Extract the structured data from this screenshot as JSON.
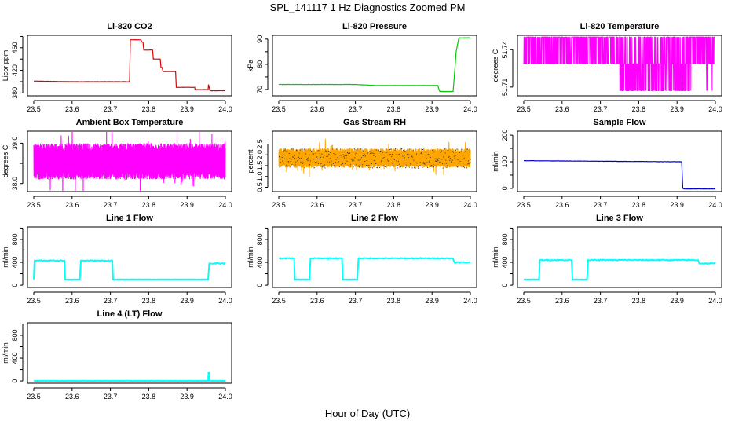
{
  "figure": {
    "title": "SPL_141117  1 Hz Diagnostics Zoomed PM",
    "xlabel": "Hour of Day (UTC)"
  },
  "colors": {
    "red": "#dd0000",
    "green": "#00cc00",
    "magenta": "#ff00ff",
    "orange": "#ffa500",
    "blue": "#0000cc",
    "cyan": "#00ffff",
    "axis": "#000000"
  },
  "chart_data": [
    {
      "id": "co2",
      "type": "line",
      "title": "Li-820 CO2",
      "ylabel": "Licor ppm",
      "color": "red",
      "xlim": [
        23.5,
        24.0
      ],
      "xticks": [
        23.5,
        23.6,
        23.7,
        23.8,
        23.9,
        24.0
      ],
      "ylim": [
        375,
        482
      ],
      "yticks": [
        380,
        400,
        420,
        440,
        460,
        480
      ],
      "ytick_labels": [
        "380",
        "",
        "420",
        "",
        "460",
        ""
      ],
      "series": [
        {
          "name": "CO2",
          "x": [
            23.5,
            23.6,
            23.7,
            23.75,
            23.752,
            23.78,
            23.782,
            23.785,
            23.787,
            23.81,
            23.812,
            23.83,
            23.832,
            23.835,
            23.837,
            23.87,
            23.872,
            23.92,
            23.921,
            23.955,
            23.956,
            23.96,
            23.962,
            24.0
          ],
          "y": [
            401,
            400,
            400,
            400,
            474,
            474,
            470,
            470,
            456,
            456,
            440,
            440,
            425,
            425,
            418,
            418,
            390,
            390,
            386,
            386,
            395,
            384,
            384,
            384
          ]
        }
      ]
    },
    {
      "id": "pressure",
      "type": "line",
      "title": "Li-820 Pressure",
      "ylabel": "kPa",
      "color": "green",
      "xlim": [
        23.5,
        24.0
      ],
      "xticks": [
        23.5,
        23.6,
        23.7,
        23.8,
        23.9,
        24.0
      ],
      "ylim": [
        67.5,
        91.5
      ],
      "yticks": [
        70,
        75,
        80,
        85,
        90
      ],
      "ytick_labels": [
        "70",
        "",
        "80",
        "",
        "90"
      ],
      "series": [
        {
          "name": "Pressure",
          "x": [
            23.5,
            23.6,
            23.7,
            23.75,
            23.8,
            23.85,
            23.9,
            23.915,
            23.92,
            23.955,
            23.96,
            23.963,
            23.97,
            24.0
          ],
          "y": [
            72,
            72,
            72,
            71.6,
            71.6,
            71.6,
            71.6,
            71.6,
            69.2,
            69.2,
            79,
            85,
            90.5,
            90.5
          ]
        }
      ]
    },
    {
      "id": "li820temp",
      "type": "line",
      "title": "Li-820 Temperature",
      "ylabel": "degrees C",
      "color": "magenta",
      "xlim": [
        23.5,
        24.0
      ],
      "xticks": [
        23.5,
        23.6,
        23.7,
        23.8,
        23.9,
        24.0
      ],
      "ylim": [
        51.703,
        51.7515
      ],
      "yticks": [
        51.71,
        51.74
      ],
      "ytick_labels": [
        "51.71",
        "51.74"
      ],
      "series": [
        {
          "name": "Temperature",
          "levels": [
            51.7502,
            51.7287,
            51.7071
          ],
          "mode": "toggle"
        }
      ]
    },
    {
      "id": "ambient",
      "type": "line",
      "title": "Ambient Box Temperature",
      "ylabel": "degrees C",
      "color": "magenta",
      "xlim": [
        23.5,
        24.0
      ],
      "xticks": [
        23.5,
        23.6,
        23.7,
        23.8,
        23.9,
        24.0
      ],
      "ylim": [
        37.8,
        39.3
      ],
      "yticks": [
        38.0,
        38.5,
        39.0
      ],
      "ytick_labels": [
        "38.0",
        "",
        "39.0"
      ],
      "series": [
        {
          "name": "Temperature",
          "band": [
            38.1,
            39.0
          ],
          "center": 38.55,
          "mode": "noise"
        }
      ]
    },
    {
      "id": "rh",
      "type": "line",
      "title": "Gas Stream RH",
      "ylabel": "percent",
      "color": "orange",
      "xlim": [
        23.5,
        24.0
      ],
      "xticks": [
        23.5,
        23.6,
        23.7,
        23.8,
        23.9,
        24.0
      ],
      "ylim": [
        0.3,
        3.1
      ],
      "yticks": [
        0.5,
        1.0,
        1.5,
        2.0,
        2.5
      ],
      "ytick_labels": [
        "0.5",
        "1.0",
        "1.5",
        "2.0",
        "2.5"
      ],
      "series": [
        {
          "name": "RH",
          "band": [
            1.4,
            2.3
          ],
          "center": 1.85,
          "mode": "noise"
        }
      ]
    },
    {
      "id": "sampleflow",
      "type": "line",
      "title": "Sample Flow",
      "ylabel": "ml/min",
      "color": "blue",
      "xlim": [
        23.5,
        24.0
      ],
      "xticks": [
        23.5,
        23.6,
        23.7,
        23.8,
        23.9,
        24.0
      ],
      "ylim": [
        -12,
        215
      ],
      "yticks": [
        0,
        50,
        100,
        150,
        200
      ],
      "ytick_labels": [
        "0",
        "",
        "100",
        "",
        "200"
      ],
      "series": [
        {
          "name": "Flow",
          "x": [
            23.5,
            23.6,
            23.7,
            23.8,
            23.9,
            23.912,
            23.915,
            23.92,
            24.0
          ],
          "y": [
            104,
            103,
            102,
            101,
            100,
            100,
            0,
            -2,
            -2
          ]
        }
      ]
    },
    {
      "id": "line1",
      "type": "line",
      "title": "Line 1 Flow",
      "ylabel": "ml/min",
      "color": "cyan",
      "xlim": [
        23.5,
        24.0
      ],
      "xticks": [
        23.5,
        23.6,
        23.7,
        23.8,
        23.9,
        24.0
      ],
      "ylim": [
        -40,
        1020
      ],
      "yticks": [
        0,
        200,
        400,
        600,
        800,
        1000
      ],
      "ytick_labels": [
        "0",
        "",
        "400",
        "",
        "800",
        ""
      ],
      "series": [
        {
          "name": "Flow",
          "x": [
            23.5,
            23.502,
            23.58,
            23.582,
            23.62,
            23.623,
            23.705,
            23.707,
            23.955,
            23.958,
            24.0
          ],
          "y": [
            100,
            430,
            430,
            100,
            100,
            430,
            430,
            100,
            100,
            380,
            380
          ]
        }
      ]
    },
    {
      "id": "line2",
      "type": "line",
      "title": "Line 2 Flow",
      "ylabel": "ml/min",
      "color": "cyan",
      "xlim": [
        23.5,
        24.0
      ],
      "xticks": [
        23.5,
        23.6,
        23.7,
        23.8,
        23.9,
        24.0
      ],
      "ylim": [
        -40,
        1020
      ],
      "yticks": [
        0,
        200,
        400,
        600,
        800,
        1000
      ],
      "ytick_labels": [
        "0",
        "",
        "400",
        "",
        "800",
        ""
      ],
      "series": [
        {
          "name": "Flow",
          "x": [
            23.5,
            23.54,
            23.542,
            23.58,
            23.583,
            23.665,
            23.667,
            23.705,
            23.708,
            23.955,
            23.958,
            24.0
          ],
          "y": [
            470,
            470,
            100,
            100,
            470,
            470,
            100,
            100,
            470,
            470,
            400,
            400
          ]
        }
      ]
    },
    {
      "id": "line3",
      "type": "line",
      "title": "Line 3 Flow",
      "ylabel": "ml/min",
      "color": "cyan",
      "xlim": [
        23.5,
        24.0
      ],
      "xticks": [
        23.5,
        23.6,
        23.7,
        23.8,
        23.9,
        24.0
      ],
      "ylim": [
        -40,
        1020
      ],
      "yticks": [
        0,
        200,
        400,
        600,
        800,
        1000
      ],
      "ytick_labels": [
        "0",
        "",
        "400",
        "",
        "800",
        ""
      ],
      "series": [
        {
          "name": "Flow",
          "x": [
            23.5,
            23.502,
            23.54,
            23.542,
            23.625,
            23.627,
            23.665,
            23.668,
            23.955,
            23.958,
            24.0
          ],
          "y": [
            100,
            100,
            100,
            440,
            440,
            100,
            100,
            440,
            440,
            380,
            380
          ]
        }
      ]
    },
    {
      "id": "line4",
      "type": "line",
      "title": "Line 4 (LT) Flow",
      "ylabel": "ml/min",
      "color": "cyan",
      "xlim": [
        23.5,
        24.0
      ],
      "xticks": [
        23.5,
        23.6,
        23.7,
        23.8,
        23.9,
        24.0
      ],
      "ylim": [
        -40,
        1020
      ],
      "yticks": [
        0,
        200,
        400,
        600,
        800,
        1000
      ],
      "ytick_labels": [
        "0",
        "",
        "400",
        "",
        "800",
        ""
      ],
      "series": [
        {
          "name": "Flow",
          "x": [
            23.5,
            23.955,
            23.956,
            23.957,
            23.958,
            24.0
          ],
          "y": [
            2,
            2,
            140,
            140,
            2,
            2
          ]
        }
      ]
    }
  ]
}
